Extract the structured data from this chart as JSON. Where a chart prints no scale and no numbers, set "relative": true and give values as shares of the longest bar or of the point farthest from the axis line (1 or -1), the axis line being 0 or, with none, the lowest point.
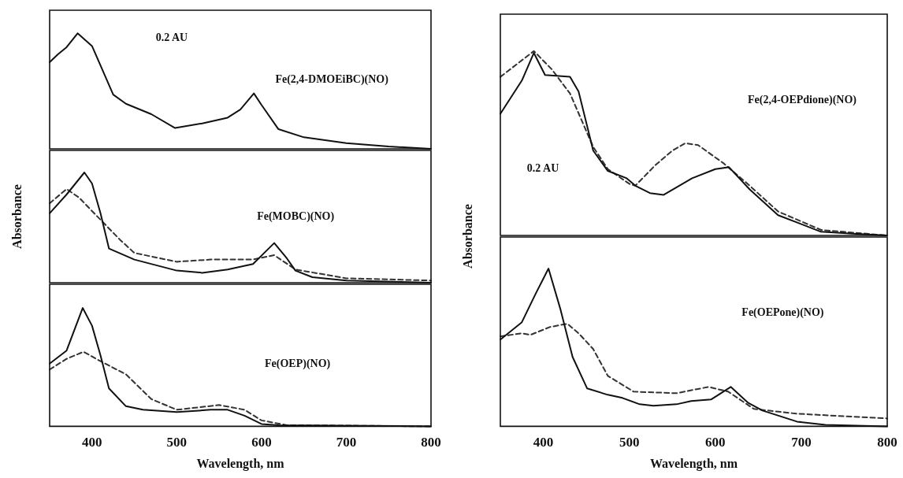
{
  "chart_data": [
    {
      "type": "line",
      "relative": true,
      "xlim": [
        350,
        800
      ],
      "xticks": [
        400,
        500,
        600,
        700,
        800
      ],
      "tick_labels": false,
      "grid": false,
      "legend": false,
      "marker": "none",
      "annotations": [
        "0.2 AU",
        "Fe(2,4-DMOEiBC)(NO)"
      ],
      "series": [
        {
          "color": "#111111",
          "line_style": "solid",
          "x": [
            350,
            360,
            370,
            383,
            400,
            425,
            440,
            470,
            498,
            530,
            560,
            575,
            591,
            600,
            620,
            650,
            700,
            750,
            800
          ],
          "values": [
            0.75,
            0.82,
            0.88,
            1,
            0.89,
            0.47,
            0.39,
            0.3,
            0.18,
            0.22,
            0.27,
            0.34,
            0.48,
            0.38,
            0.17,
            0.1,
            0.05,
            0.02,
            0
          ]
        }
      ]
    },
    {
      "type": "line",
      "relative": true,
      "xlim": [
        350,
        800
      ],
      "xticks": [
        400,
        500,
        600,
        700,
        800
      ],
      "tick_labels": false,
      "grid": false,
      "legend": false,
      "marker": "none",
      "ylabel": "Absorbance",
      "annotations": [
        "Fe(MOBC)(NO)"
      ],
      "series": [
        {
          "color": "#111111",
          "line_style": "solid",
          "x": [
            350,
            370,
            391,
            400,
            410,
            420,
            450,
            500,
            530,
            560,
            590,
            615,
            630,
            640,
            660,
            700,
            800
          ],
          "values": [
            0.63,
            0.8,
            1,
            0.9,
            0.63,
            0.31,
            0.21,
            0.11,
            0.09,
            0.12,
            0.17,
            0.36,
            0.22,
            0.11,
            0.05,
            0.02,
            0
          ]
        },
        {
          "color": "#333333",
          "line_style": "dashed",
          "x": [
            350,
            370,
            385,
            400,
            433,
            450,
            500,
            540,
            590,
            615,
            640,
            700,
            800
          ],
          "values": [
            0.72,
            0.85,
            0.77,
            0.65,
            0.39,
            0.27,
            0.19,
            0.21,
            0.21,
            0.25,
            0.12,
            0.04,
            0.02
          ]
        }
      ]
    },
    {
      "type": "line",
      "relative": true,
      "xlim": [
        350,
        800
      ],
      "xticks": [
        400,
        500,
        600,
        700,
        800
      ],
      "tick_labels": "x",
      "xlabel": "Wavelength, nm",
      "grid": false,
      "legend": false,
      "marker": "none",
      "annotations": [
        "Fe(OEP)(NO)"
      ],
      "series": [
        {
          "color": "#111111",
          "line_style": "solid",
          "x": [
            350,
            370,
            389,
            400,
            410,
            420,
            440,
            460,
            500,
            540,
            560,
            580,
            600,
            620,
            800
          ],
          "values": [
            0.53,
            0.64,
            1,
            0.85,
            0.6,
            0.32,
            0.17,
            0.14,
            0.12,
            0.14,
            0.14,
            0.09,
            0.02,
            0.01,
            0
          ]
        },
        {
          "color": "#333333",
          "line_style": "dashed",
          "x": [
            350,
            370,
            390,
            410,
            440,
            470,
            500,
            550,
            580,
            600,
            630,
            800
          ],
          "values": [
            0.48,
            0.57,
            0.63,
            0.55,
            0.44,
            0.23,
            0.14,
            0.18,
            0.14,
            0.05,
            0.01,
            0
          ]
        }
      ]
    },
    {
      "type": "line",
      "relative": true,
      "xlim": [
        350,
        800
      ],
      "xticks": [
        400,
        500,
        600,
        700,
        800
      ],
      "tick_labels": false,
      "grid": false,
      "legend": false,
      "marker": "none",
      "ylabel": "Absorbance",
      "annotations": [
        "Fe(2,4-OEPdione)(NO)",
        "0.2 AU"
      ],
      "series": [
        {
          "color": "#111111",
          "line_style": "solid",
          "x": [
            350,
            375,
            389,
            402,
            431,
            441,
            458,
            475,
            497,
            507,
            524,
            540,
            573,
            600,
            616,
            640,
            673,
            723,
            760,
            800
          ],
          "values": [
            0.66,
            0.84,
            0.99,
            0.87,
            0.86,
            0.78,
            0.46,
            0.35,
            0.31,
            0.27,
            0.23,
            0.22,
            0.31,
            0.36,
            0.37,
            0.25,
            0.11,
            0.02,
            0.01,
            0
          ]
        },
        {
          "color": "#333333",
          "line_style": "dashed",
          "x": [
            350,
            389,
            410,
            431,
            458,
            475,
            500,
            507,
            530,
            550,
            565,
            580,
            610,
            640,
            673,
            723,
            800
          ],
          "values": [
            0.86,
            1,
            0.9,
            0.77,
            0.48,
            0.36,
            0.28,
            0.27,
            0.38,
            0.46,
            0.5,
            0.49,
            0.39,
            0.27,
            0.13,
            0.03,
            0
          ]
        }
      ]
    },
    {
      "type": "line",
      "relative": true,
      "xlim": [
        350,
        800
      ],
      "xticks": [
        400,
        500,
        600,
        700,
        800
      ],
      "tick_labels": "x",
      "xlabel": "Wavelength, nm",
      "grid": false,
      "legend": false,
      "marker": "none",
      "annotations": [
        "Fe(OEPone)(NO)"
      ],
      "series": [
        {
          "color": "#111111",
          "line_style": "solid",
          "x": [
            350,
            375,
            391,
            406,
            420,
            434,
            451,
            475,
            492,
            512,
            528,
            555,
            572,
            595,
            618,
            638,
            655,
            695,
            728,
            800
          ],
          "values": [
            0.55,
            0.66,
            0.84,
            1,
            0.74,
            0.44,
            0.24,
            0.2,
            0.18,
            0.14,
            0.13,
            0.14,
            0.16,
            0.17,
            0.25,
            0.15,
            0.1,
            0.03,
            0.01,
            0
          ]
        },
        {
          "color": "#333333",
          "line_style": "dashed",
          "x": [
            350,
            375,
            385,
            408,
            428,
            441,
            458,
            475,
            505,
            555,
            592,
            615,
            645,
            695,
            800
          ],
          "values": [
            0.57,
            0.59,
            0.58,
            0.63,
            0.65,
            0.59,
            0.49,
            0.32,
            0.22,
            0.21,
            0.25,
            0.22,
            0.11,
            0.08,
            0.05
          ]
        }
      ]
    }
  ]
}
